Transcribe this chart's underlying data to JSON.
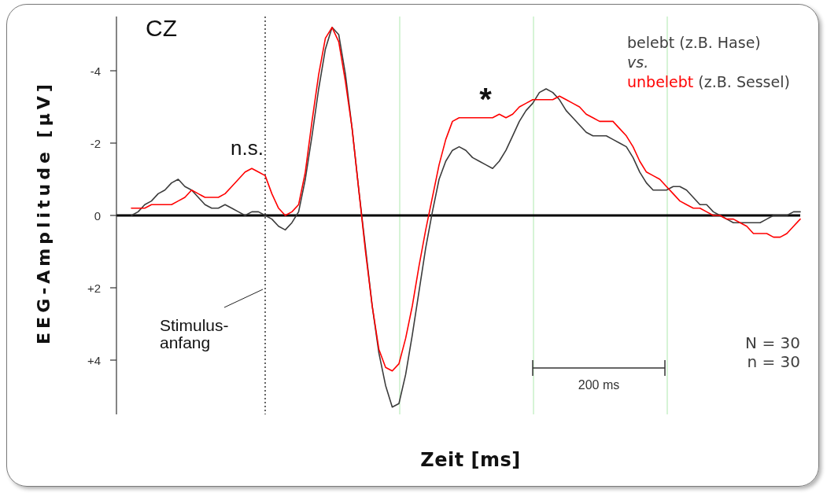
{
  "chart_data": {
    "type": "line",
    "title": "CZ",
    "xlabel": "Zeit [ms]",
    "ylabel": "EEG-Amplitude [µV]",
    "categories": [
      null,
      null,
      null,
      null,
      null,
      null,
      null,
      null,
      null,
      null,
      null,
      null,
      null,
      null,
      null,
      null,
      null,
      null,
      null,
      null,
      null,
      null,
      null,
      null,
      null,
      null,
      null,
      null,
      null,
      null,
      null,
      null,
      null,
      null,
      null,
      null,
      null,
      null,
      null,
      null,
      null,
      null,
      null,
      null,
      null,
      null,
      null,
      null,
      null,
      null,
      null,
      null,
      null,
      null,
      null,
      null,
      null,
      null,
      null,
      null,
      null,
      null,
      null,
      null,
      null,
      null,
      null,
      null,
      null,
      null,
      null,
      null,
      null,
      null,
      null,
      null,
      null,
      null,
      null,
      null,
      null,
      null,
      null,
      null,
      null,
      null,
      null,
      null,
      null,
      null,
      null,
      null,
      null,
      null,
      null,
      null,
      null,
      null,
      null,
      null,
      null
    ],
    "ylim": [
      5.5,
      -5.5
    ],
    "yticks": [
      {
        "value": -4,
        "label": "-4"
      },
      {
        "value": -2,
        "label": "-2"
      },
      {
        "value": 0,
        "label": "0"
      },
      {
        "value": 2,
        "label": "+2"
      },
      {
        "value": 4,
        "label": "+4"
      }
    ],
    "tick_labels": "y",
    "series": [
      {
        "name": "belebt (z.B. Hase)",
        "color": "#3c3c3c",
        "values": [
          0.0,
          -0.1,
          -0.3,
          -0.4,
          -0.6,
          -0.7,
          -0.9,
          -1.0,
          -0.8,
          -0.7,
          -0.5,
          -0.3,
          -0.2,
          -0.2,
          -0.3,
          -0.2,
          -0.1,
          0.0,
          -0.1,
          -0.1,
          0.0,
          0.1,
          0.3,
          0.4,
          0.2,
          -0.1,
          -1.0,
          -2.2,
          -3.5,
          -4.6,
          -5.2,
          -5.0,
          -3.9,
          -2.4,
          -0.7,
          0.9,
          2.5,
          3.8,
          4.7,
          5.3,
          5.2,
          4.4,
          3.3,
          2.1,
          0.9,
          -0.1,
          -1.0,
          -1.5,
          -1.8,
          -1.9,
          -1.8,
          -1.6,
          -1.5,
          -1.4,
          -1.3,
          -1.5,
          -1.8,
          -2.2,
          -2.6,
          -2.9,
          -3.1,
          -3.4,
          -3.5,
          -3.4,
          -3.2,
          -2.9,
          -2.7,
          -2.5,
          -2.3,
          -2.2,
          -2.2,
          -2.2,
          -2.1,
          -2.0,
          -1.9,
          -1.6,
          -1.2,
          -0.9,
          -0.7,
          -0.7,
          -0.7,
          -0.8,
          -0.8,
          -0.7,
          -0.5,
          -0.3,
          -0.3,
          -0.1,
          0.0,
          0.1,
          0.2,
          0.2,
          0.2,
          0.2,
          0.2,
          0.1,
          0.0,
          0.0,
          0.0,
          -0.1,
          -0.1
        ]
      },
      {
        "name": "unbelebt (z.B. Sessel)",
        "color": "#ff0000",
        "values": [
          -0.2,
          -0.2,
          -0.2,
          -0.3,
          -0.3,
          -0.3,
          -0.3,
          -0.4,
          -0.5,
          -0.7,
          -0.6,
          -0.5,
          -0.5,
          -0.5,
          -0.6,
          -0.8,
          -1.0,
          -1.2,
          -1.3,
          -1.2,
          -1.1,
          -0.6,
          -0.2,
          0.0,
          -0.1,
          -0.3,
          -1.2,
          -2.6,
          -3.9,
          -4.9,
          -5.2,
          -4.8,
          -3.7,
          -2.4,
          -0.7,
          1.0,
          2.5,
          3.7,
          4.2,
          4.3,
          4.1,
          3.4,
          2.5,
          1.4,
          0.4,
          -0.5,
          -1.4,
          -2.1,
          -2.6,
          -2.7,
          -2.7,
          -2.7,
          -2.7,
          -2.7,
          -2.7,
          -2.8,
          -2.7,
          -2.8,
          -3.0,
          -3.1,
          -3.2,
          -3.2,
          -3.2,
          -3.2,
          -3.3,
          -3.2,
          -3.1,
          -3.0,
          -2.8,
          -2.7,
          -2.6,
          -2.6,
          -2.6,
          -2.4,
          -2.2,
          -1.9,
          -1.5,
          -1.2,
          -1.1,
          -1.0,
          -0.8,
          -0.6,
          -0.4,
          -0.3,
          -0.2,
          -0.2,
          -0.1,
          0.0,
          0.0,
          0.1,
          0.1,
          0.2,
          0.3,
          0.5,
          0.5,
          0.5,
          0.6,
          0.6,
          0.5,
          0.3,
          0.1
        ]
      }
    ],
    "ref_lines": [
      {
        "axis": "x",
        "label": "Stimulus-\nanfang",
        "color": "#000000",
        "line_style": "dotted"
      },
      {
        "axis": "x",
        "color": "#c8f0c8"
      },
      {
        "axis": "x",
        "color": "#c8f0c8"
      },
      {
        "axis": "x",
        "color": "#c8f0c8"
      },
      {
        "axis": "y",
        "value": 0,
        "color": "#000000"
      }
    ],
    "annotations": [
      "vs.",
      "N = 30",
      "n = 30",
      "n.s.",
      "*",
      "200 ms"
    ]
  }
}
